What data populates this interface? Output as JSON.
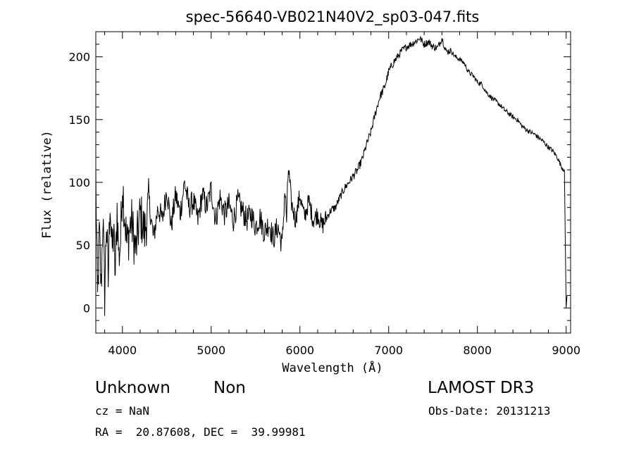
{
  "chart_data": {
    "type": "line",
    "title": "spec-56640-VB021N40V2_sp03-047.fits",
    "xlabel": "Wavelength (Å)",
    "ylabel": "Flux (relative)",
    "xlim": [
      3700,
      9050
    ],
    "ylim": [
      -20,
      220
    ],
    "xticks": [
      4000,
      5000,
      6000,
      7000,
      8000,
      9000
    ],
    "yticks": [
      0,
      50,
      100,
      150,
      200
    ],
    "series": [
      {
        "name": "flux",
        "x": [
          3700,
          3720,
          3740,
          3760,
          3780,
          3800,
          3820,
          3840,
          3860,
          3880,
          3900,
          3920,
          3940,
          3960,
          3980,
          4000,
          4050,
          4100,
          4150,
          4200,
          4250,
          4300,
          4350,
          4400,
          4450,
          4500,
          4550,
          4600,
          4650,
          4700,
          4750,
          4800,
          4850,
          4900,
          4950,
          5000,
          5050,
          5100,
          5150,
          5200,
          5250,
          5300,
          5350,
          5400,
          5450,
          5500,
          5550,
          5600,
          5650,
          5700,
          5750,
          5800,
          5830,
          5850,
          5870,
          5900,
          5950,
          6000,
          6050,
          6100,
          6150,
          6200,
          6250,
          6300,
          6350,
          6400,
          6450,
          6500,
          6550,
          6600,
          6650,
          6700,
          6750,
          6800,
          6850,
          6900,
          6950,
          7000,
          7050,
          7100,
          7150,
          7200,
          7250,
          7300,
          7350,
          7400,
          7450,
          7500,
          7550,
          7600,
          7650,
          7700,
          7750,
          7800,
          7850,
          7900,
          7950,
          8000,
          8050,
          8100,
          8150,
          8200,
          8250,
          8300,
          8350,
          8400,
          8450,
          8500,
          8550,
          8600,
          8650,
          8700,
          8750,
          8800,
          8850,
          8900,
          8950,
          8980,
          9000,
          9010
        ],
        "values": [
          105,
          5,
          60,
          15,
          75,
          10,
          70,
          20,
          90,
          45,
          60,
          25,
          80,
          40,
          55,
          100,
          50,
          70,
          45,
          75,
          60,
          85,
          55,
          80,
          70,
          95,
          65,
          90,
          75,
          100,
          80,
          85,
          70,
          90,
          80,
          95,
          70,
          88,
          75,
          82,
          70,
          85,
          78,
          70,
          75,
          65,
          72,
          60,
          68,
          55,
          65,
          50,
          95,
          70,
          112,
          85,
          70,
          90,
          72,
          85,
          70,
          75,
          65,
          72,
          78,
          80,
          88,
          95,
          100,
          105,
          110,
          118,
          130,
          140,
          155,
          168,
          175,
          188,
          195,
          200,
          205,
          208,
          210,
          212,
          215,
          210,
          212,
          208,
          207,
          215,
          204,
          205,
          200,
          198,
          195,
          188,
          185,
          180,
          178,
          172,
          168,
          165,
          162,
          158,
          155,
          152,
          150,
          145,
          142,
          140,
          138,
          135,
          132,
          128,
          125,
          120,
          112,
          110,
          0,
          10
        ]
      }
    ]
  },
  "footer": {
    "object_class": "Unknown",
    "subclass": "Non",
    "survey": "LAMOST DR3",
    "cz": "cz = NaN",
    "obs_date": "Obs-Date: 20131213",
    "coords": "RA =  20.87608, DEC =  39.99981"
  }
}
